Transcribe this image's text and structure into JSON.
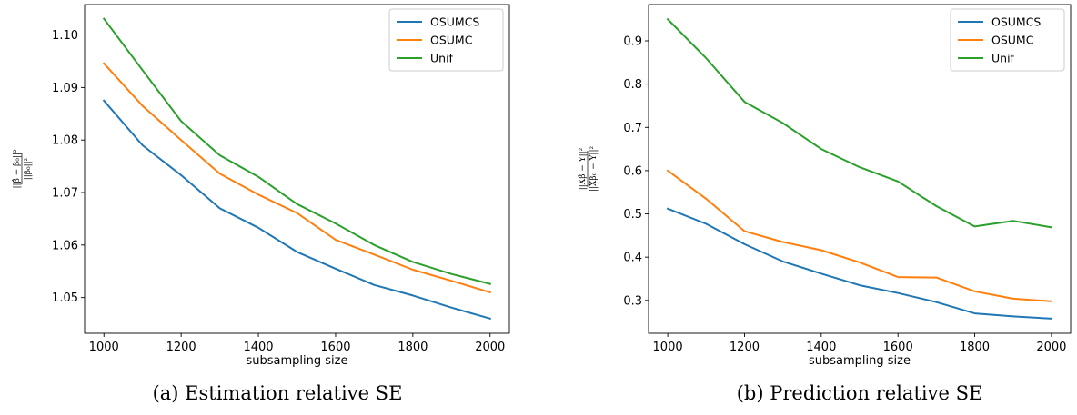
{
  "chart_data": [
    {
      "type": "line",
      "caption": "(a) Estimation relative SE",
      "xlabel": "subsampling size",
      "ylabel": {
        "numerator": "||β̂ − β₀||²",
        "denominator": "||β₀||²"
      },
      "x": [
        1000,
        1100,
        1200,
        1300,
        1400,
        1500,
        1600,
        1700,
        1800,
        1900,
        2000
      ],
      "xlim": [
        950,
        2050
      ],
      "ylim": [
        1.0432,
        1.1058
      ],
      "xticks": [
        1000,
        1200,
        1400,
        1600,
        1800,
        2000
      ],
      "yticks": [
        1.05,
        1.06,
        1.07,
        1.08,
        1.09,
        1.1
      ],
      "ytick_decimals": 2,
      "grid": false,
      "legend_position": "top-right",
      "series": [
        {
          "name": "OSUMCS",
          "color": "#1f77b4",
          "values": [
            1.0875,
            1.079,
            1.0733,
            1.067,
            1.0633,
            1.0587,
            1.0555,
            1.0524,
            1.0504,
            1.0481,
            1.046
          ]
        },
        {
          "name": "OSUMC",
          "color": "#ff7f0e",
          "values": [
            1.0946,
            1.0865,
            1.08,
            1.0736,
            1.0696,
            1.0661,
            1.061,
            1.0582,
            1.0553,
            1.0532,
            1.051
          ]
        },
        {
          "name": "Unif",
          "color": "#2ca02c",
          "values": [
            1.1031,
            1.0933,
            1.0836,
            1.0771,
            1.073,
            1.0678,
            1.0641,
            1.06,
            1.0568,
            1.0545,
            1.0526
          ]
        }
      ]
    },
    {
      "type": "line",
      "caption": "(b) Prediction relative SE",
      "xlabel": "subsampling size",
      "ylabel": {
        "numerator": "||Xβ̂ − Y||²",
        "denominator": "||Xβ₀ − Y||²"
      },
      "x": [
        1000,
        1100,
        1200,
        1300,
        1400,
        1500,
        1600,
        1700,
        1800,
        1900,
        2000
      ],
      "xlim": [
        950,
        2050
      ],
      "ylim": [
        0.224,
        0.984
      ],
      "xticks": [
        1000,
        1200,
        1400,
        1600,
        1800,
        2000
      ],
      "yticks": [
        0.3,
        0.4,
        0.5,
        0.6,
        0.7,
        0.8,
        0.9
      ],
      "ytick_decimals": 1,
      "grid": false,
      "legend_position": "top-right",
      "series": [
        {
          "name": "OSUMCS",
          "color": "#1f77b4",
          "values": [
            0.512,
            0.477,
            0.43,
            0.39,
            0.362,
            0.335,
            0.317,
            0.296,
            0.27,
            0.263,
            0.258
          ]
        },
        {
          "name": "OSUMC",
          "color": "#ff7f0e",
          "values": [
            0.6,
            0.535,
            0.46,
            0.435,
            0.416,
            0.388,
            0.354,
            0.353,
            0.321,
            0.304,
            0.298
          ]
        },
        {
          "name": "Unif",
          "color": "#2ca02c",
          "values": [
            0.95,
            0.86,
            0.759,
            0.71,
            0.65,
            0.608,
            0.575,
            0.518,
            0.471,
            0.484,
            0.469
          ]
        }
      ]
    }
  ]
}
